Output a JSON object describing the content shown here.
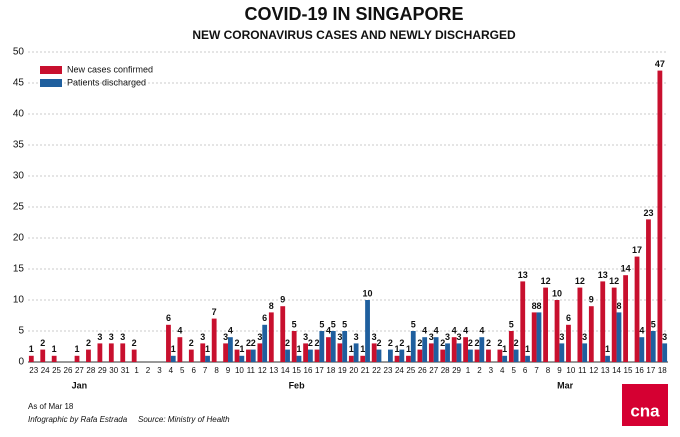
{
  "chart_data": {
    "type": "bar",
    "title": "COVID-19 IN SINGAPORE",
    "subtitle": "NEW CORONAVIRUS CASES AND NEWLY DISCHARGED",
    "categories": [
      "23",
      "24",
      "25",
      "26",
      "27",
      "28",
      "29",
      "30",
      "31",
      "1",
      "2",
      "3",
      "4",
      "5",
      "6",
      "7",
      "8",
      "9",
      "10",
      "11",
      "12",
      "13",
      "14",
      "15",
      "16",
      "17",
      "18",
      "19",
      "20",
      "21",
      "22",
      "23",
      "24",
      "25",
      "26",
      "27",
      "28",
      "29",
      "1",
      "2",
      "3",
      "4",
      "5",
      "6",
      "7",
      "8",
      "9",
      "10",
      "11",
      "12",
      "13",
      "14",
      "15",
      "16",
      "17",
      "18"
    ],
    "months": [
      "Jan",
      "Feb",
      "Mar"
    ],
    "series": [
      {
        "name": "New cases confirmed",
        "color": "#c8102e",
        "values": [
          1,
          2,
          1,
          0,
          1,
          2,
          3,
          3,
          3,
          2,
          0,
          0,
          6,
          4,
          2,
          3,
          7,
          3,
          2,
          2,
          3,
          8,
          9,
          5,
          3,
          2,
          4,
          3,
          1,
          1,
          3,
          0,
          1,
          1,
          2,
          3,
          2,
          4,
          4,
          2,
          2,
          2,
          5,
          13,
          8,
          12,
          10,
          6,
          12,
          9,
          13,
          12,
          14,
          17,
          23,
          47
        ]
      },
      {
        "name": "Patients discharged",
        "color": "#1f5f9e",
        "values": [
          0,
          0,
          0,
          0,
          0,
          0,
          0,
          0,
          0,
          0,
          0,
          0,
          1,
          0,
          0,
          1,
          0,
          4,
          1,
          2,
          6,
          0,
          2,
          1,
          2,
          5,
          5,
          5,
          3,
          10,
          2,
          2,
          2,
          5,
          4,
          4,
          3,
          3,
          2,
          4,
          0,
          1,
          2,
          1,
          8,
          0,
          3,
          0,
          3,
          0,
          1,
          8,
          0,
          4,
          5,
          3
        ]
      }
    ],
    "ylim": [
      0,
      50
    ],
    "yticks": [
      0,
      5,
      10,
      15,
      20,
      25,
      30,
      35,
      40,
      45,
      50
    ],
    "grid": true,
    "legend": "top-left",
    "notes": [
      "As of Mar 18",
      "Infographic by Rafa Estrada",
      "Source: Ministry of Health"
    ],
    "logo": "cna"
  }
}
